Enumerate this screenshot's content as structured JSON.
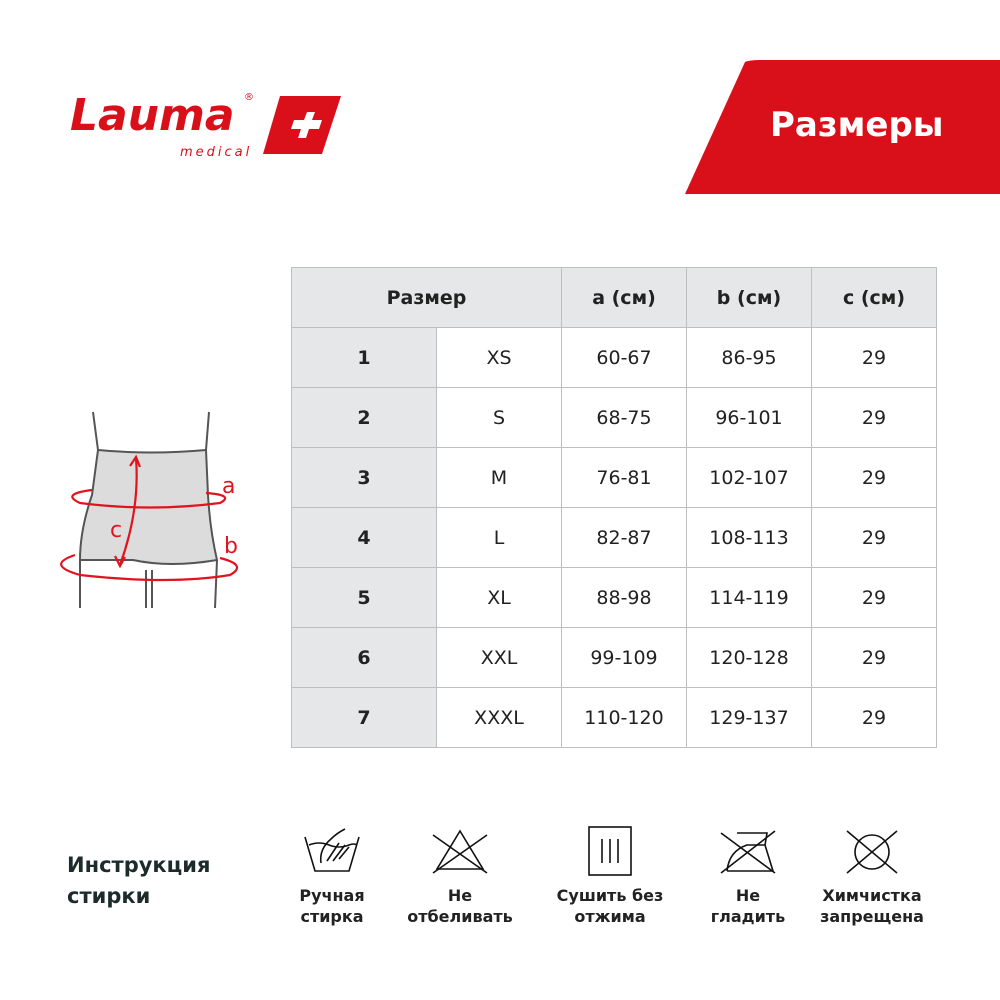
{
  "brand": {
    "name": "Lauma",
    "sub": "medical",
    "color": "#d9101a"
  },
  "header": {
    "title": "Размеры"
  },
  "table": {
    "headers": [
      "Размер",
      "a (см)",
      "b (см)",
      "c (см)"
    ],
    "rows": [
      [
        "1",
        "XS",
        "60-67",
        "86-95",
        "29"
      ],
      [
        "2",
        "S",
        "68-75",
        "96-101",
        "29"
      ],
      [
        "3",
        "M",
        "76-81",
        "102-107",
        "29"
      ],
      [
        "4",
        "L",
        "82-87",
        "108-113",
        "29"
      ],
      [
        "5",
        "XL",
        "88-98",
        "114-119",
        "29"
      ],
      [
        "6",
        "XXL",
        "99-109",
        "120-128",
        "29"
      ],
      [
        "7",
        "XXXL",
        "110-120",
        "129-137",
        "29"
      ]
    ]
  },
  "figure": {
    "labels": [
      "a",
      "b",
      "c"
    ]
  },
  "care": {
    "title_line1": "Инструкция",
    "title_line2": "стирки",
    "items": [
      {
        "icon": "hand-wash-icon",
        "l1": "Ручная",
        "l2": "стирка"
      },
      {
        "icon": "no-bleach-icon",
        "l1": "Не",
        "l2": "отбеливать"
      },
      {
        "icon": "drip-dry-icon",
        "l1": "Сушить без",
        "l2": "отжима"
      },
      {
        "icon": "no-iron-icon",
        "l1": "Не",
        "l2": "гладить"
      },
      {
        "icon": "no-dry-clean-icon",
        "l1": "Химчистка",
        "l2": "запрещена"
      }
    ]
  }
}
